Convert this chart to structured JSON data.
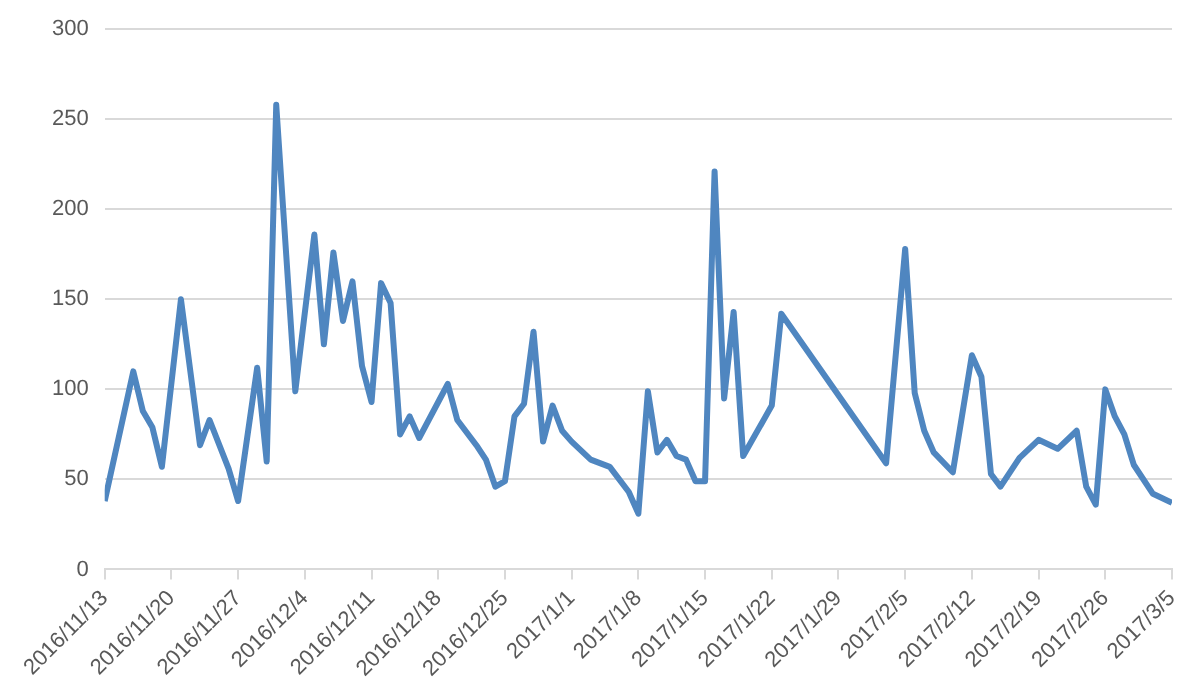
{
  "chart_data": {
    "type": "line",
    "x": [
      "2016-11-13",
      "2016-11-16",
      "2016-11-17",
      "2016-11-18",
      "2016-11-19",
      "2016-11-21",
      "2016-11-23",
      "2016-11-24",
      "2016-11-26",
      "2016-11-27",
      "2016-11-29",
      "2016-11-30",
      "2016-12-01",
      "2016-12-03",
      "2016-12-05",
      "2016-12-06",
      "2016-12-07",
      "2016-12-08",
      "2016-12-09",
      "2016-12-10",
      "2016-12-11",
      "2016-12-12",
      "2016-12-13",
      "2016-12-14",
      "2016-12-15",
      "2016-12-16",
      "2016-12-19",
      "2016-12-20",
      "2016-12-22",
      "2016-12-23",
      "2016-12-24",
      "2016-12-25",
      "2016-12-26",
      "2016-12-27",
      "2016-12-28",
      "2016-12-29",
      "2016-12-30",
      "2016-12-31",
      "2017-01-01",
      "2017-01-03",
      "2017-01-05",
      "2017-01-07",
      "2017-01-08",
      "2017-01-09",
      "2017-01-10",
      "2017-01-11",
      "2017-01-12",
      "2017-01-13",
      "2017-01-14",
      "2017-01-15",
      "2017-01-16",
      "2017-01-17",
      "2017-01-18",
      "2017-01-19",
      "2017-01-22",
      "2017-01-23",
      "2017-02-03",
      "2017-02-05",
      "2017-02-06",
      "2017-02-07",
      "2017-02-08",
      "2017-02-10",
      "2017-02-12",
      "2017-02-13",
      "2017-02-14",
      "2017-02-15",
      "2017-02-17",
      "2017-02-19",
      "2017-02-21",
      "2017-02-23",
      "2017-02-24",
      "2017-02-25",
      "2017-02-26",
      "2017-02-27",
      "2017-02-28",
      "2017-03-01",
      "2017-03-03",
      "2017-03-05"
    ],
    "series": [
      {
        "color": "#4f86c0",
        "values": [
          38,
          110,
          88,
          79,
          57,
          150,
          69,
          83,
          56,
          38,
          112,
          60,
          258,
          99,
          186,
          125,
          176,
          138,
          160,
          113,
          93,
          159,
          148,
          75,
          85,
          73,
          103,
          83,
          69,
          61,
          46,
          49,
          85,
          92,
          132,
          71,
          91,
          77,
          71,
          61,
          57,
          43,
          31,
          99,
          65,
          72,
          63,
          61,
          49,
          49,
          221,
          95,
          143,
          63,
          91,
          142,
          59,
          178,
          98,
          77,
          65,
          54,
          119,
          107,
          53,
          46,
          62,
          72,
          67,
          77,
          46,
          36,
          100,
          85,
          75,
          58,
          42,
          37
        ]
      }
    ],
    "xlim": [
      "2016-11-13",
      "2017-03-05"
    ],
    "xticks": [
      {
        "value": "2016-11-13",
        "label": "2016/11/13"
      },
      {
        "value": "2016-11-20",
        "label": "2016/11/20"
      },
      {
        "value": "2016-11-27",
        "label": "2016/11/27"
      },
      {
        "value": "2016-12-04",
        "label": "2016/12/4"
      },
      {
        "value": "2016-12-11",
        "label": "2016/12/11"
      },
      {
        "value": "2016-12-18",
        "label": "2016/12/18"
      },
      {
        "value": "2016-12-25",
        "label": "2016/12/25"
      },
      {
        "value": "2017-01-01",
        "label": "2017/1/1"
      },
      {
        "value": "2017-01-08",
        "label": "2017/1/8"
      },
      {
        "value": "2017-01-15",
        "label": "2017/1/15"
      },
      {
        "value": "2017-01-22",
        "label": "2017/1/22"
      },
      {
        "value": "2017-01-29",
        "label": "2017/1/29"
      },
      {
        "value": "2017-02-05",
        "label": "2017/2/5"
      },
      {
        "value": "2017-02-12",
        "label": "2017/2/12"
      },
      {
        "value": "2017-02-19",
        "label": "2017/2/19"
      },
      {
        "value": "2017-02-26",
        "label": "2017/2/26"
      },
      {
        "value": "2017-03-05",
        "label": "2017/3/5"
      }
    ],
    "ylim": [
      0,
      300
    ],
    "yticks": [
      0,
      50,
      100,
      150,
      200,
      250,
      300
    ],
    "grid": "y",
    "legend": false,
    "marker": "none",
    "line_style": "solid"
  }
}
